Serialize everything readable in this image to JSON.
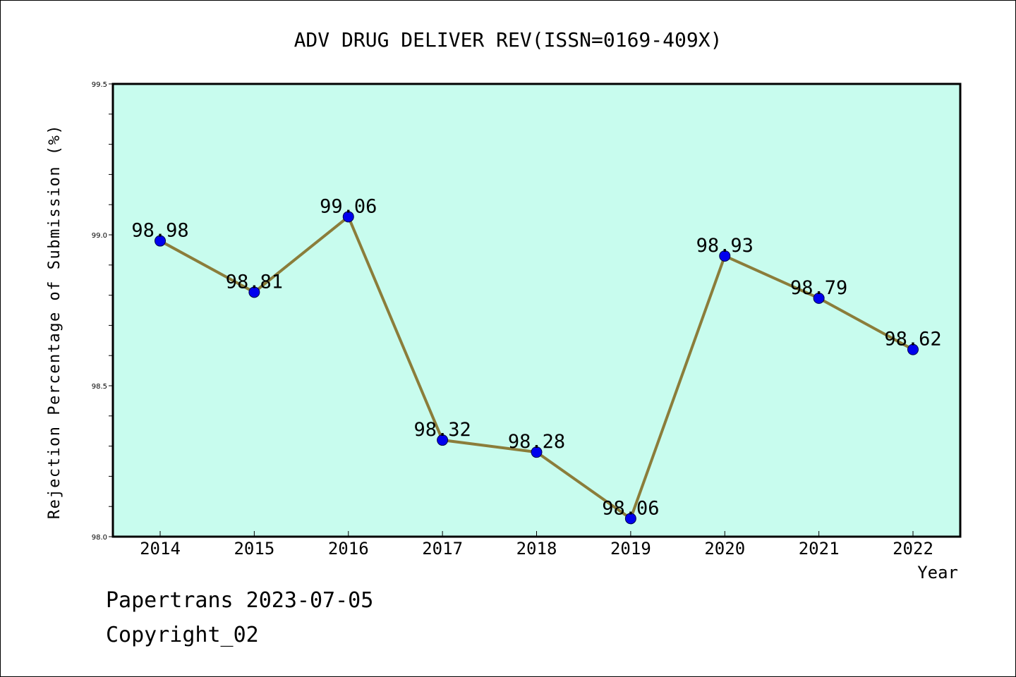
{
  "chart_data": {
    "type": "line",
    "title": "ADV DRUG DELIVER REV(ISSN=0169-409X)",
    "xlabel": "Year",
    "ylabel": "Rejection Percentage of Submission (%)",
    "x": [
      "2014",
      "2015",
      "2016",
      "2017",
      "2018",
      "2019",
      "2020",
      "2021",
      "2022"
    ],
    "series": [
      {
        "values": [
          98.98,
          98.81,
          99.06,
          98.32,
          98.28,
          98.06,
          98.93,
          98.79,
          98.62
        ],
        "data_labels": [
          "98.98",
          "98.81",
          "99.06",
          "98.32",
          "98.28",
          "98.06",
          "98.93",
          "98.79",
          "98.62"
        ],
        "line_color": "#8b7d3a",
        "marker_color": "#0000ee"
      }
    ],
    "ylim": [
      98.0,
      99.5
    ],
    "yticks": [
      "98.0",
      "98.5",
      "99.0",
      "99.5"
    ],
    "plot_background": "#c8fcee",
    "grid": false
  },
  "footer": {
    "date_line": "Papertrans 2023-07-05",
    "copyright_line": "Copyright_02"
  }
}
